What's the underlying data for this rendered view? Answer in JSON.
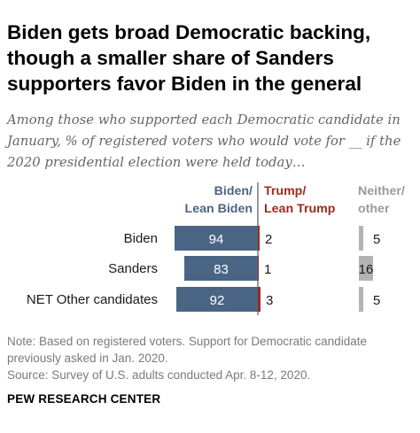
{
  "title": "Biden gets broad Democratic backing, though a smaller share of Sanders supporters favor Biden in the general",
  "subtitle": "Among those who supported each Democratic candidate in January, % of registered voters who would vote for __ if the 2020 presidential election were held today…",
  "chart_data": {
    "type": "bar",
    "categories": [
      "Biden",
      "Sanders",
      "NET Other candidates"
    ],
    "series": [
      {
        "name": "Biden/ Lean Biden",
        "color": "#4a6584",
        "values": [
          94,
          83,
          92
        ]
      },
      {
        "name": "Trump/ Lean Trump",
        "color": "#9b2b1e",
        "values": [
          2,
          1,
          3
        ]
      },
      {
        "name": "Neither/ other",
        "color": "#b3b3b3",
        "values": [
          5,
          16,
          5
        ]
      }
    ],
    "legend_placement": "top",
    "grid": false
  },
  "notes": "Note: Based on registered voters. Support for Democratic candidate previously asked in Jan. 2020.",
  "source": "Source: Survey of U.S. adults conducted Apr. 8-12, 2020.",
  "org": "PEW RESEARCH CENTER"
}
